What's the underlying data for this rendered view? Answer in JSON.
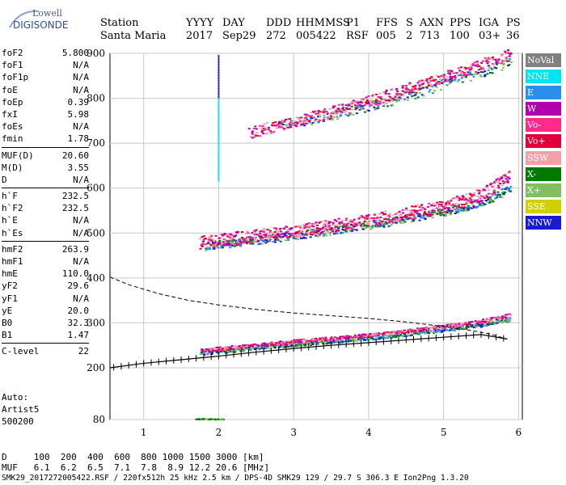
{
  "logo": {
    "line1": "Lowell",
    "line2": "DIGISONDE"
  },
  "header": {
    "row1": [
      "Station",
      "YYYY",
      "DAY",
      "DDD",
      "HHMMSS",
      "P1",
      "FFS",
      "S",
      "AXN",
      "PPS",
      "IGA",
      "PS"
    ],
    "row2": [
      "Santa Maria",
      "2017",
      "Sep29",
      "272",
      "005422",
      "RSF",
      "005",
      "2",
      "713",
      "100",
      "03+",
      "36"
    ]
  },
  "params": {
    "group1": [
      {
        "k": "foF2",
        "v": "5.800"
      },
      {
        "k": "foF1",
        "v": "N/A"
      },
      {
        "k": "foF1p",
        "v": "N/A"
      },
      {
        "k": "foE",
        "v": "N/A"
      },
      {
        "k": "foEp",
        "v": "0.39"
      },
      {
        "k": "fxI",
        "v": "5.98"
      },
      {
        "k": "foEs",
        "v": "N/A"
      },
      {
        "k": "fmin",
        "v": "1.78"
      }
    ],
    "group2": [
      {
        "k": "MUF(D)",
        "v": "20.60"
      },
      {
        "k": "M(D)",
        "v": "3.55"
      },
      {
        "k": "D",
        "v": "N/A"
      }
    ],
    "group3": [
      {
        "k": "h`F",
        "v": "232.5"
      },
      {
        "k": "h`F2",
        "v": "232.5"
      },
      {
        "k": "h`E",
        "v": "N/A"
      },
      {
        "k": "h`Es",
        "v": "N/A"
      }
    ],
    "group4": [
      {
        "k": "hmF2",
        "v": "263.9"
      },
      {
        "k": "hmF1",
        "v": "N/A"
      },
      {
        "k": "hmE",
        "v": "110.0"
      },
      {
        "k": "yF2",
        "v": "29.6"
      },
      {
        "k": "yF1",
        "v": "N/A"
      },
      {
        "k": "yE",
        "v": "20.0"
      },
      {
        "k": "B0",
        "v": "32.3"
      },
      {
        "k": "B1",
        "v": "1.47"
      }
    ],
    "group5": [
      {
        "k": "C-level",
        "v": "22"
      }
    ]
  },
  "auto": {
    "line1": "Auto:",
    "line2": "Artist5",
    "line3": "500200"
  },
  "bottom": {
    "d_row": "D     100  200  400  600  800 1000 1500 3000 [km]",
    "muf_row": "MUF   6.1  6.2  6.5  7.1  7.8  8.9 12.2 20.6 [MHz]",
    "footer": "SMK29_2017272005422.RSF / 220fx512h 25 kHz 2.5 km / DPS-4D SMK29 129 / 29.7 S 306.3 E Ion2Png 1.3.20"
  },
  "legend": [
    {
      "label": "NoVal",
      "color": "#808080"
    },
    {
      "label": "NNE",
      "color": "#00e5ee"
    },
    {
      "label": "E",
      "color": "#2a8fe8"
    },
    {
      "label": "W",
      "color": "#b000b0"
    },
    {
      "label": "Vo-",
      "color": "#ff2a8a"
    },
    {
      "label": "Vo+",
      "color": "#e0003a"
    },
    {
      "label": "SSW",
      "color": "#f4a0a8"
    },
    {
      "label": "X-",
      "color": "#007a00"
    },
    {
      "label": "X+",
      "color": "#80c060"
    },
    {
      "label": "SSE",
      "color": "#d0d000"
    },
    {
      "label": "NNW",
      "color": "#1a1ad0"
    }
  ],
  "chart_data": {
    "type": "scatter",
    "title": "",
    "xlabel": "",
    "ylabel": "",
    "x_ticks": [
      1,
      2,
      3,
      4,
      5,
      6
    ],
    "y_ticks": [
      80,
      200,
      300,
      400,
      500,
      600,
      700,
      800,
      900
    ],
    "xlim": [
      0.55,
      6.05
    ],
    "ylim_note": "piecewise: 80 at bottom, 200-900 linear",
    "grid": true,
    "true_height_profile": [
      [
        0.55,
        200
      ],
      [
        1.0,
        210
      ],
      [
        1.5,
        218
      ],
      [
        2.0,
        226
      ],
      [
        2.5,
        235
      ],
      [
        3.0,
        243
      ],
      [
        3.5,
        250
      ],
      [
        4.0,
        256
      ],
      [
        4.5,
        262
      ],
      [
        5.0,
        268
      ],
      [
        5.5,
        274
      ],
      [
        5.85,
        264
      ]
    ],
    "muf_curve": [
      [
        0.55,
        402
      ],
      [
        0.8,
        385
      ],
      [
        1.2,
        365
      ],
      [
        1.6,
        350
      ],
      [
        2.0,
        340
      ],
      [
        2.5,
        330
      ],
      [
        3.0,
        322
      ],
      [
        3.5,
        316
      ],
      [
        4.0,
        310
      ],
      [
        4.5,
        302
      ],
      [
        5.0,
        292
      ],
      [
        5.3,
        285
      ],
      [
        5.6,
        276
      ],
      [
        5.85,
        264
      ]
    ],
    "o_trace_1hop": [
      [
        1.75,
        238
      ],
      [
        2.5,
        250
      ],
      [
        3.0,
        258
      ],
      [
        3.5,
        265
      ],
      [
        4.0,
        272
      ],
      [
        4.5,
        281
      ],
      [
        5.0,
        292
      ],
      [
        5.5,
        303
      ],
      [
        5.9,
        318
      ]
    ],
    "x_trace_1hop": [
      [
        1.75,
        232
      ],
      [
        2.5,
        244
      ],
      [
        3.0,
        252
      ],
      [
        3.5,
        258
      ],
      [
        4.0,
        266
      ],
      [
        4.5,
        274
      ],
      [
        5.0,
        284
      ],
      [
        5.5,
        295
      ],
      [
        5.9,
        308
      ]
    ],
    "o_trace_2hop": [
      [
        1.75,
        475
      ],
      [
        2.5,
        490
      ],
      [
        3.0,
        500
      ],
      [
        3.5,
        512
      ],
      [
        4.0,
        524
      ],
      [
        4.5,
        540
      ],
      [
        5.0,
        555
      ],
      [
        5.5,
        580
      ],
      [
        5.9,
        625
      ]
    ],
    "x_trace_2hop": [
      [
        1.8,
        468
      ],
      [
        2.5,
        482
      ],
      [
        3.0,
        492
      ],
      [
        3.5,
        503
      ],
      [
        4.0,
        515
      ],
      [
        4.5,
        530
      ],
      [
        5.0,
        545
      ],
      [
        5.5,
        565
      ],
      [
        5.9,
        600
      ]
    ],
    "o_trace_3hop": [
      [
        2.4,
        720
      ],
      [
        3.0,
        745
      ],
      [
        3.5,
        765
      ],
      [
        4.0,
        790
      ],
      [
        4.5,
        815
      ],
      [
        5.0,
        845
      ],
      [
        5.5,
        870
      ],
      [
        5.9,
        895
      ]
    ],
    "x_trace_3hop": [
      [
        2.8,
        738
      ],
      [
        3.5,
        758
      ],
      [
        4.0,
        780
      ],
      [
        4.5,
        800
      ],
      [
        5.0,
        830
      ],
      [
        5.5,
        855
      ],
      [
        5.9,
        880
      ]
    ],
    "es_trace": [
      [
        1.7,
        82
      ],
      [
        2.05,
        82
      ]
    ]
  }
}
